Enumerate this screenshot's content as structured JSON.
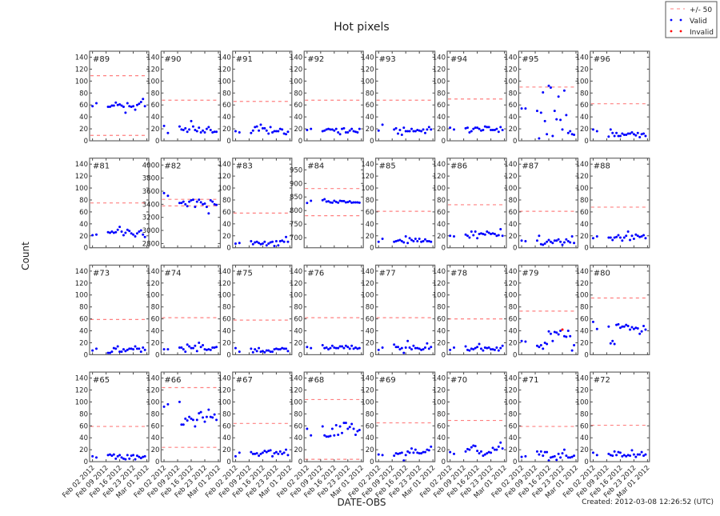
{
  "chart_data": {
    "type": "scatter",
    "title": "Hot pixels",
    "xlabel": "DATE-OBS",
    "ylabel": "Count",
    "footer": "Created: 2012-03-08 12:26:52 (UTC)",
    "grid": false,
    "layout": {
      "rows": 4,
      "cols": 8
    },
    "legend": {
      "placement": "top-right",
      "entries": [
        {
          "label": "+/- 50",
          "kind": "dashed-line",
          "color": "#ff8080"
        },
        {
          "label": "Valid",
          "kind": "point",
          "color": "#0000ff"
        },
        {
          "label": "Invalid",
          "kind": "point",
          "color": "#ff0000"
        }
      ]
    },
    "band_halfwidth": 50,
    "xlim": [
      "2012-01-31T12:00",
      "2012-03-02T00:00"
    ],
    "x_ticks": [
      "2012-02-02",
      "2012-02-09",
      "2012-02-16",
      "2012-02-23",
      "2012-03-01"
    ],
    "x_tick_labels": [
      "Feb 02 2012",
      "Feb 09 2012",
      "Feb 16 2012",
      "Feb 23 2012",
      "Mar 01 2012"
    ],
    "dates": [
      "2012-02-02",
      "2012-02-04",
      "2012-02-10",
      "2012-02-11",
      "2012-02-12",
      "2012-02-13",
      "2012-02-14",
      "2012-02-15",
      "2012-02-16",
      "2012-02-17",
      "2012-02-18",
      "2012-02-19",
      "2012-02-20",
      "2012-02-21",
      "2012-02-22",
      "2012-02-23",
      "2012-02-24",
      "2012-02-25",
      "2012-02-26",
      "2012-02-27",
      "2012-02-28",
      "2012-02-29"
    ],
    "default_ylim": [
      0,
      150
    ],
    "default_yticks": [
      0,
      20,
      40,
      60,
      80,
      100,
      120,
      140
    ],
    "panels": [
      {
        "label": "#89",
        "center": 59,
        "values": [
          58,
          63,
          57,
          57,
          59,
          59,
          64,
          60,
          61,
          59,
          57,
          47,
          63,
          58,
          57,
          58,
          52,
          60,
          62,
          65,
          70,
          58
        ]
      },
      {
        "label": "#90",
        "center": 18,
        "values": [
          25,
          13,
          24,
          19,
          18,
          21,
          15,
          19,
          33,
          24,
          18,
          16,
          22,
          14,
          17,
          14,
          20,
          23,
          18,
          14,
          15,
          15
        ]
      },
      {
        "label": "#91",
        "center": 16,
        "values": [
          16,
          14,
          13,
          17,
          23,
          24,
          17,
          27,
          21,
          21,
          17,
          12,
          23,
          14,
          16,
          16,
          16,
          20,
          19,
          12,
          11,
          15
        ]
      },
      {
        "label": "#92",
        "center": 18,
        "values": [
          18,
          20,
          16,
          17,
          19,
          20,
          19,
          19,
          17,
          20,
          14,
          11,
          20,
          21,
          14,
          14,
          17,
          20,
          16,
          15,
          14,
          20
        ]
      },
      {
        "label": "#93",
        "center": 18,
        "values": [
          17,
          27,
          19,
          21,
          12,
          18,
          10,
          22,
          16,
          16,
          16,
          20,
          16,
          16,
          18,
          17,
          16,
          19,
          13,
          19,
          23,
          19
        ]
      },
      {
        "label": "#94",
        "center": 20,
        "values": [
          22,
          19,
          21,
          22,
          14,
          16,
          20,
          22,
          22,
          20,
          17,
          18,
          24,
          23,
          23,
          18,
          18,
          18,
          20,
          15,
          23,
          18
        ]
      },
      {
        "label": "#95",
        "center": 40,
        "values": [
          54,
          54,
          50,
          4,
          47,
          81,
          33,
          11,
          92,
          89,
          8,
          50,
          36,
          74,
          35,
          19,
          84,
          43,
          13,
          16,
          11,
          10
        ]
      },
      {
        "label": "#96",
        "center": 12,
        "values": [
          19,
          16,
          7,
          19,
          13,
          8,
          13,
          8,
          8,
          12,
          10,
          10,
          12,
          12,
          14,
          11,
          9,
          13,
          6,
          11,
          12,
          8
        ]
      },
      {
        "label": "#81",
        "center": 25,
        "values": [
          21,
          22,
          26,
          25,
          27,
          25,
          26,
          30,
          35,
          27,
          21,
          25,
          30,
          28,
          24,
          22,
          19,
          24,
          27,
          29,
          22,
          18
        ]
      },
      {
        "label": "#82",
        "center": 3425,
        "ylim": [
          2735,
          4105
        ],
        "yticks": [
          2800,
          3000,
          3200,
          3400,
          3600,
          3800,
          4000
        ],
        "values": [
          3570,
          3530,
          3420,
          3420,
          3440,
          3400,
          3370,
          3440,
          3460,
          3470,
          3360,
          3440,
          3470,
          3430,
          3400,
          3410,
          3360,
          3260,
          3460,
          3440,
          3400,
          3390
        ]
      },
      {
        "label": "#83",
        "center": 8,
        "values": [
          7,
          8,
          11,
          6,
          9,
          10,
          8,
          6,
          7,
          10,
          4,
          7,
          9,
          10,
          3,
          11,
          4,
          11,
          12,
          10,
          18,
          10
        ]
      },
      {
        "label": "#84",
        "center": 831,
        "ylim": [
          663,
          993
        ],
        "yticks": [
          700,
          750,
          800,
          850,
          900,
          950
        ],
        "values": [
          828,
          836,
          838,
          842,
          833,
          834,
          830,
          829,
          836,
          832,
          829,
          836,
          835,
          835,
          830,
          831,
          834,
          829,
          830,
          830,
          830,
          829
        ]
      },
      {
        "label": "#85",
        "center": 11,
        "values": [
          10,
          15,
          10,
          11,
          12,
          13,
          11,
          9,
          19,
          8,
          16,
          13,
          11,
          15,
          11,
          15,
          10,
          11,
          14,
          11,
          11,
          10
        ]
      },
      {
        "label": "#86",
        "center": 22,
        "values": [
          20,
          19,
          22,
          20,
          17,
          27,
          21,
          27,
          16,
          23,
          24,
          23,
          22,
          27,
          25,
          23,
          24,
          23,
          20,
          21,
          31,
          20
        ]
      },
      {
        "label": "#87",
        "center": 11,
        "values": [
          12,
          11,
          12,
          20,
          6,
          5,
          7,
          10,
          13,
          10,
          8,
          12,
          12,
          14,
          10,
          5,
          9,
          14,
          11,
          9,
          19,
          8
        ]
      },
      {
        "label": "#88",
        "center": 18,
        "values": [
          16,
          19,
          17,
          17,
          13,
          17,
          18,
          21,
          17,
          12,
          17,
          20,
          27,
          13,
          20,
          15,
          22,
          20,
          18,
          19,
          21,
          16
        ]
      },
      {
        "label": "#73",
        "center": 9,
        "values": [
          7,
          10,
          3,
          3,
          5,
          11,
          10,
          14,
          5,
          5,
          9,
          6,
          8,
          10,
          10,
          9,
          14,
          10,
          10,
          5,
          12,
          8
        ]
      },
      {
        "label": "#74",
        "center": 12,
        "values": [
          9,
          9,
          12,
          12,
          9,
          5,
          17,
          14,
          11,
          11,
          15,
          6,
          20,
          13,
          16,
          9,
          8,
          9,
          8,
          12,
          12,
          13
        ]
      },
      {
        "label": "#75",
        "center": 8,
        "values": [
          11,
          5,
          10,
          4,
          9,
          6,
          11,
          5,
          6,
          4,
          7,
          7,
          5,
          5,
          9,
          10,
          9,
          9,
          11,
          10,
          10,
          6
        ]
      },
      {
        "label": "#76",
        "center": 12,
        "values": [
          13,
          11,
          16,
          11,
          12,
          9,
          11,
          15,
          12,
          11,
          11,
          14,
          14,
          11,
          15,
          13,
          10,
          15,
          10,
          12,
          10,
          11
        ]
      },
      {
        "label": "#77",
        "center": 12,
        "values": [
          8,
          12,
          17,
          13,
          13,
          9,
          11,
          3,
          12,
          23,
          12,
          9,
          15,
          11,
          11,
          10,
          8,
          9,
          12,
          19,
          10,
          13
        ]
      },
      {
        "label": "#78",
        "center": 10,
        "values": [
          8,
          12,
          14,
          8,
          7,
          10,
          9,
          11,
          13,
          18,
          10,
          7,
          12,
          11,
          12,
          9,
          9,
          8,
          12,
          7,
          11,
          15
        ]
      },
      {
        "label": "#79",
        "center": 23,
        "invalid_index": [
          15
        ],
        "values": [
          23,
          22,
          15,
          13,
          16,
          10,
          20,
          18,
          39,
          35,
          23,
          38,
          37,
          34,
          40,
          42,
          31,
          30,
          40,
          31,
          7,
          16
        ]
      },
      {
        "label": "#80",
        "center": 45,
        "values": [
          55,
          43,
          47,
          19,
          23,
          18,
          50,
          51,
          45,
          47,
          47,
          50,
          48,
          42,
          46,
          43,
          45,
          44,
          35,
          39,
          48,
          42
        ]
      },
      {
        "label": "#65",
        "center": 9,
        "values": [
          9,
          7,
          11,
          12,
          10,
          12,
          5,
          9,
          11,
          7,
          5,
          4,
          11,
          5,
          10,
          11,
          4,
          10,
          8,
          6,
          8,
          9
        ]
      },
      {
        "label": "#66",
        "center": 74,
        "values": [
          92,
          96,
          100,
          62,
          62,
          72,
          69,
          75,
          72,
          70,
          59,
          70,
          81,
          83,
          74,
          67,
          75,
          87,
          75,
          74,
          79,
          70
        ]
      },
      {
        "label": "#67",
        "center": 14,
        "values": [
          9,
          15,
          16,
          13,
          13,
          14,
          10,
          13,
          15,
          18,
          16,
          18,
          19,
          9,
          14,
          16,
          13,
          17,
          13,
          15,
          20,
          11
        ]
      },
      {
        "label": "#68",
        "center": 54,
        "values": [
          55,
          44,
          59,
          44,
          42,
          42,
          43,
          55,
          44,
          61,
          45,
          59,
          48,
          65,
          65,
          55,
          58,
          63,
          55,
          45,
          51,
          53
        ]
      },
      {
        "label": "#69",
        "center": 15,
        "values": [
          12,
          11,
          10,
          14,
          13,
          14,
          15,
          2,
          11,
          17,
          15,
          22,
          15,
          20,
          15,
          14,
          14,
          16,
          16,
          20,
          19,
          25
        ]
      },
      {
        "label": "#70",
        "center": 19,
        "values": [
          16,
          13,
          17,
          21,
          20,
          24,
          27,
          26,
          18,
          14,
          17,
          10,
          12,
          14,
          16,
          15,
          23,
          20,
          20,
          25,
          32,
          22
        ]
      },
      {
        "label": "#71",
        "center": 9,
        "values": [
          8,
          9,
          17,
          12,
          17,
          10,
          16,
          16,
          2,
          7,
          8,
          9,
          3,
          13,
          7,
          14,
          20,
          10,
          7,
          7,
          8,
          10
        ]
      },
      {
        "label": "#72",
        "center": 11,
        "values": [
          15,
          11,
          13,
          11,
          10,
          17,
          11,
          16,
          15,
          9,
          11,
          9,
          11,
          10,
          19,
          12,
          8,
          12,
          12,
          16,
          10,
          12
        ]
      }
    ]
  }
}
